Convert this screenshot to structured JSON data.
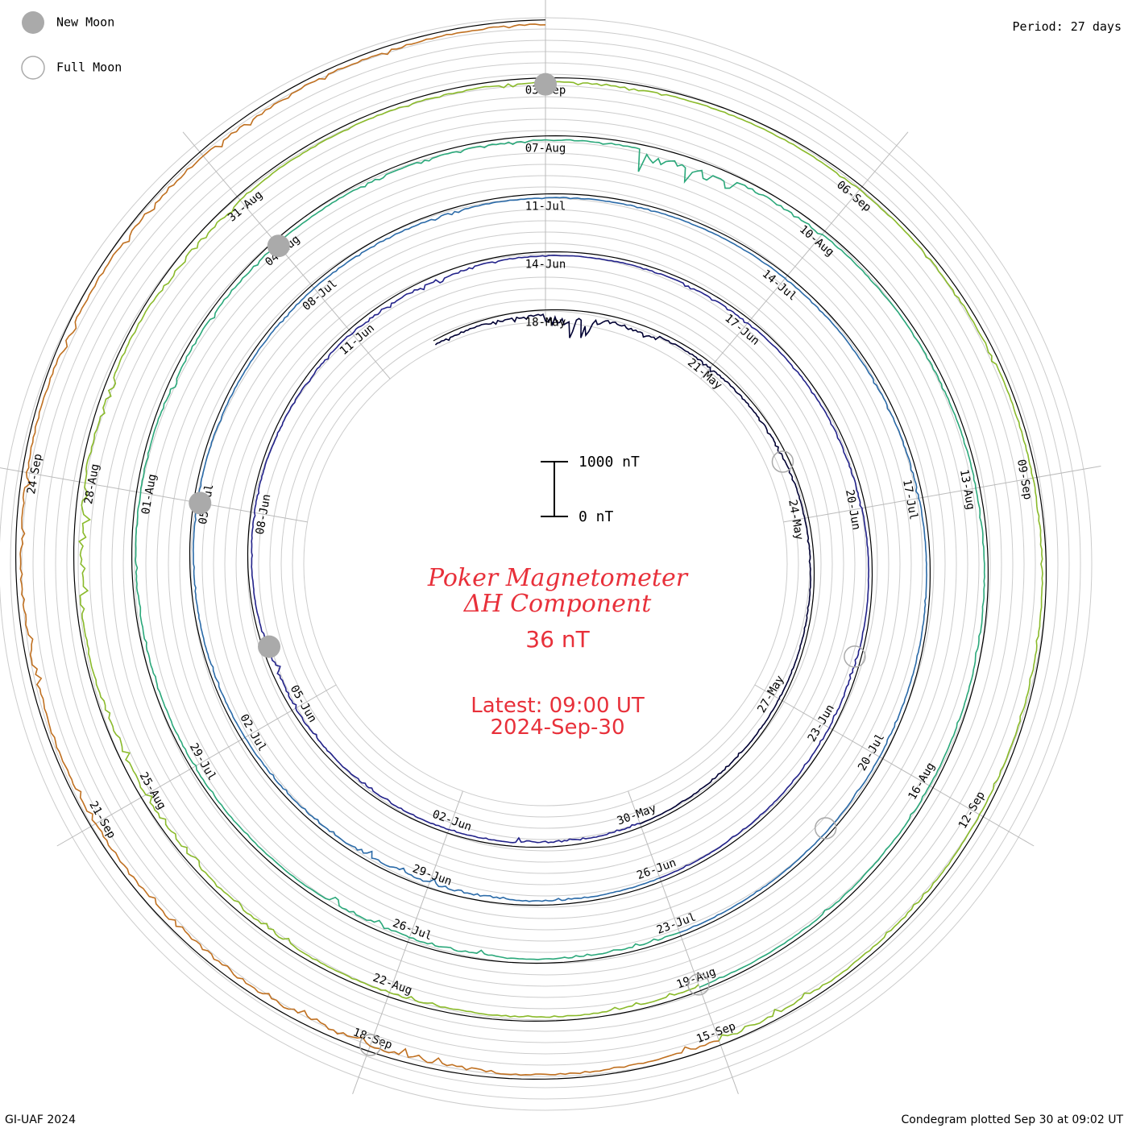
{
  "chart_data": {
    "type": "line",
    "layout": "spiral condegram",
    "title": "Poker Magnetometer",
    "subtitle": "ΔH Component",
    "value_text": "36 nT",
    "latest_label": "Latest: 09:00 UT",
    "latest_date": "2024-Sep-30",
    "period_label": "Period: 27 days",
    "scale_bar": {
      "top_label": "1000 nT",
      "bottom_label": "0 nT",
      "top_value": 1000,
      "bottom_value": 0
    },
    "legend": [
      {
        "label": "New Moon",
        "symbol": "filled-circle"
      },
      {
        "label": "Full Moon",
        "symbol": "open-circle"
      }
    ],
    "footer_left": "GI-UAF 2024",
    "footer_right": "Condegram plotted Sep 30 at 09:02 UT",
    "date_labels": [
      "18-May",
      "21-May",
      "24-May",
      "27-May",
      "30-May",
      "02-Jun",
      "05-Jun",
      "08-Jun",
      "11-Jun",
      "14-Jun",
      "17-Jun",
      "20-Jun",
      "23-Jun",
      "26-Jun",
      "29-Jun",
      "02-Jul",
      "05-Jul",
      "08-Jul",
      "11-Jul",
      "14-Jul",
      "17-Jul",
      "20-Jul",
      "23-Jul",
      "26-Jul",
      "29-Jul",
      "01-Aug",
      "04-Aug",
      "07-Aug",
      "10-Aug",
      "13-Aug",
      "16-Aug",
      "19-Aug",
      "22-Aug",
      "25-Aug",
      "28-Aug",
      "31-Aug",
      "03-Sep",
      "06-Sep",
      "09-Sep",
      "12-Sep",
      "15-Sep",
      "18-Sep",
      "21-Sep",
      "24-Sep"
    ],
    "new_moons": [
      "2024-Jun-06",
      "2024-Jul-05",
      "2024-Aug-04",
      "2024-Sep-03"
    ],
    "full_moons": [
      "2024-May-23",
      "2024-Jun-22",
      "2024-Jul-21",
      "2024-Aug-19",
      "2024-Sep-18"
    ],
    "series": [
      {
        "color": "#000033",
        "start": "2024-May-16",
        "days": 14,
        "disturbance_nT": [
          40,
          60,
          250,
          110,
          30,
          40,
          35,
          20,
          15,
          10,
          8,
          12,
          18,
          10
        ]
      },
      {
        "color": "#22228a",
        "start": "2024-May-30",
        "days": 27,
        "disturbance_nT": [
          20,
          60,
          15,
          10,
          25,
          30,
          70,
          20,
          15,
          12,
          20,
          30,
          45,
          50,
          20,
          15,
          10,
          22,
          18,
          15,
          30,
          12,
          10,
          25,
          20,
          15,
          12
        ]
      },
      {
        "color": "#2a6aa8",
        "start": "2024-Jun-26",
        "days": 27,
        "disturbance_nT": [
          15,
          30,
          70,
          80,
          25,
          20,
          15,
          12,
          10,
          12,
          15,
          20,
          18,
          30,
          22,
          15,
          12,
          10,
          14,
          20,
          18,
          12,
          10,
          15,
          14,
          12,
          10
        ]
      },
      {
        "color": "#2aa87a",
        "start": "2024-Jul-23",
        "days": 27,
        "disturbance_nT": [
          30,
          25,
          60,
          70,
          20,
          15,
          20,
          30,
          25,
          15,
          40,
          35,
          20,
          25,
          30,
          30,
          250,
          60,
          25,
          15,
          12,
          20,
          18,
          15,
          20,
          25,
          15
        ]
      },
      {
        "color": "#8aba2a",
        "start": "2024-Aug-19",
        "days": 27,
        "disturbance_nT": [
          40,
          30,
          35,
          25,
          50,
          60,
          70,
          40,
          120,
          60,
          40,
          100,
          30,
          25,
          40,
          30,
          20,
          25,
          20,
          30,
          25,
          20,
          18,
          20,
          25,
          35,
          60
        ]
      },
      {
        "color": "#c07020",
        "start": "2024-Sep-15",
        "days": 15,
        "disturbance_nT": [
          60,
          40,
          90,
          110,
          120,
          70,
          50,
          80,
          60,
          40,
          50,
          60,
          80,
          50,
          36
        ]
      }
    ]
  }
}
